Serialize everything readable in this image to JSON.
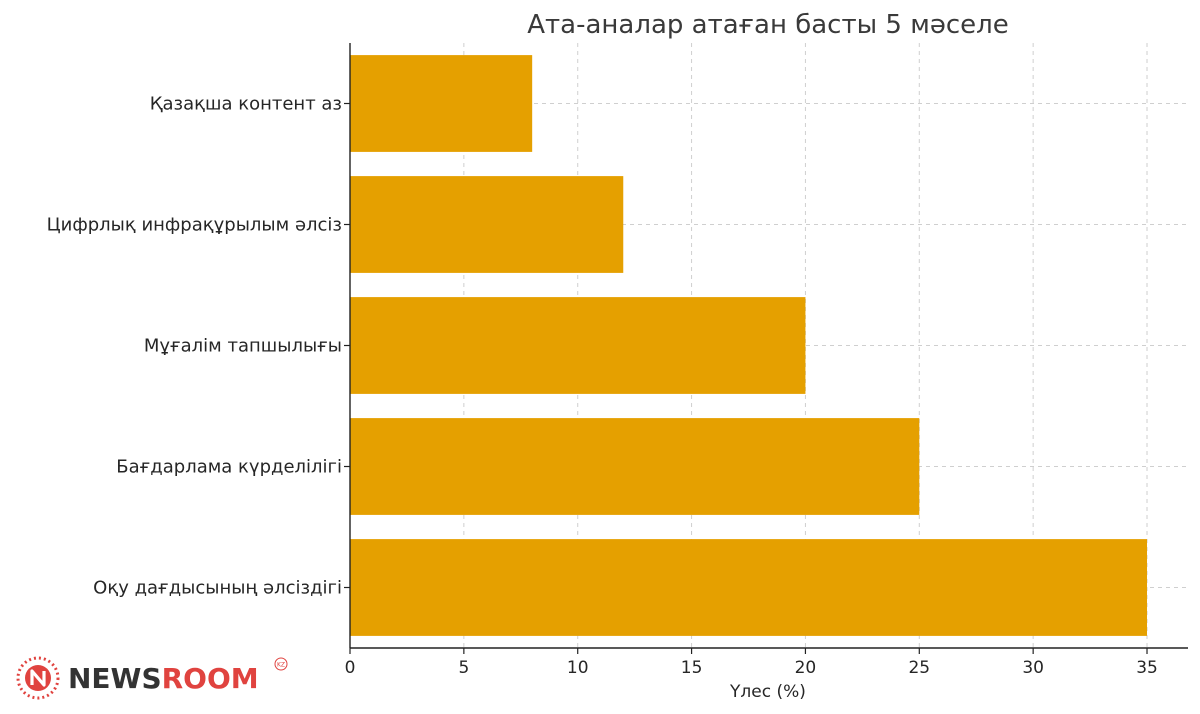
{
  "chart_data": {
    "type": "bar",
    "orientation": "horizontal",
    "title": "Ата-аналар атаған басты 5 мәселе",
    "xlabel": "Үлес (%)",
    "ylabel": "",
    "categories": [
      "Қазақша контент аз",
      "Цифрлық инфрақұрылым әлсіз",
      "Мұғалім тапшылығы",
      "Бағдарлама күрделілігі",
      "Оқу дағдысының әлсіздігі"
    ],
    "values": [
      8,
      12,
      20,
      25,
      35
    ],
    "xlim": [
      0,
      36.8
    ],
    "xticks": [
      "0",
      "5",
      "10",
      "15",
      "20",
      "25",
      "30",
      "35"
    ],
    "grid": true,
    "bar_color": "#E5A000"
  },
  "watermark": {
    "text_dark": "NEWS",
    "text_accent": "ROOM",
    "badge": "KZ",
    "dark_color": "#333333",
    "accent_color": "#E0433F"
  }
}
